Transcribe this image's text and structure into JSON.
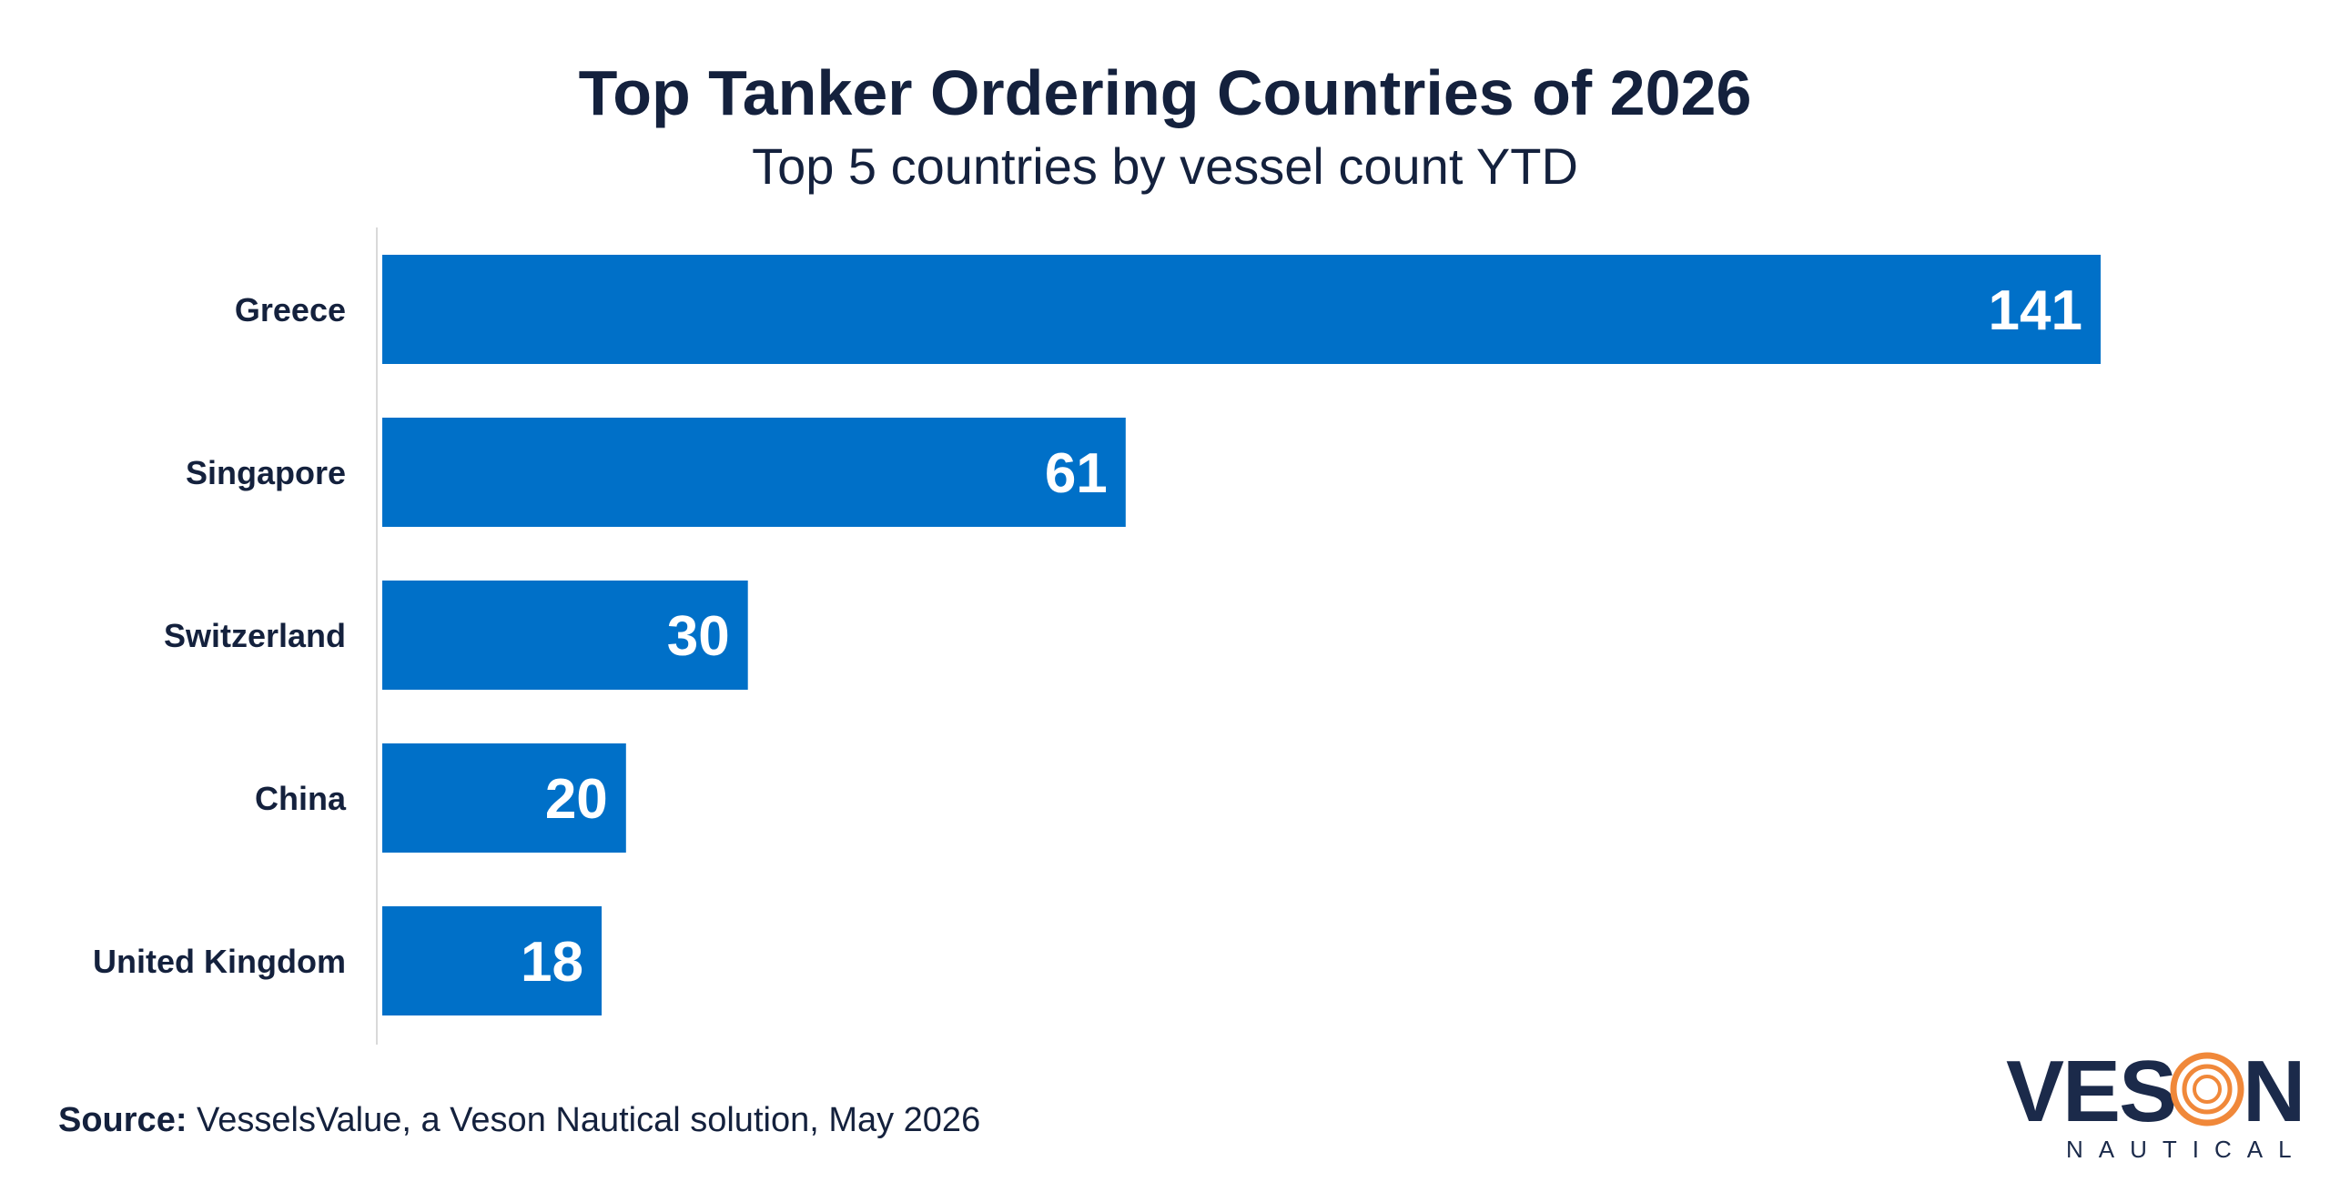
{
  "header": {
    "title": "Top Tanker Ordering Countries of 2026",
    "subtitle": "Top 5 countries by vessel count YTD"
  },
  "chart_data": {
    "type": "bar",
    "orientation": "horizontal",
    "title": "Top Tanker Ordering Countries of 2026",
    "subtitle": "Top 5 countries by vessel count YTD",
    "categories": [
      "Greece",
      "Singapore",
      "Switzerland",
      "China",
      "United Kingdom"
    ],
    "values": [
      141,
      61,
      30,
      20,
      18
    ],
    "xlim": [
      0,
      141
    ],
    "grid": false,
    "legend": "none",
    "bar_color": "#0070c8",
    "data_labels": "inside-end"
  },
  "footer": {
    "source_label": "Source:",
    "source_text": " VesselsValue, a Veson Nautical solution, May 2026"
  },
  "logo": {
    "text_left": "VES",
    "text_right": "N",
    "tagline": "NAUTICAL",
    "primary_color": "#1b2a4a",
    "accent_color": "#f0883a"
  },
  "colors": {
    "text": "#14213d",
    "bar": "#0070c8",
    "axis": "#d9d9d9"
  }
}
